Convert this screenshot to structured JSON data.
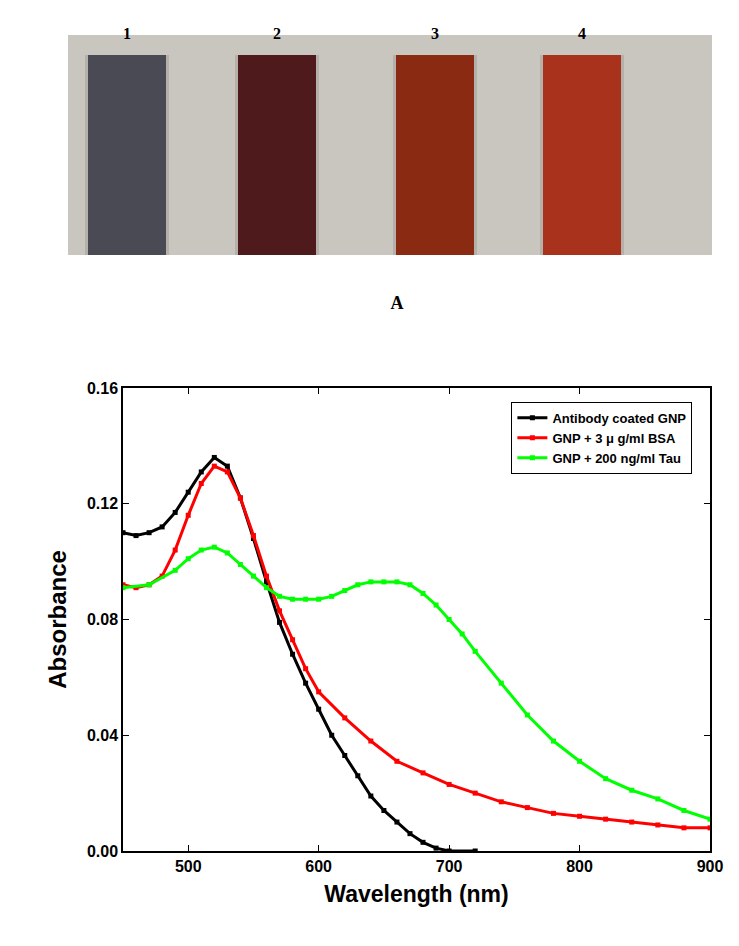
{
  "chart_data": {
    "type": "line",
    "x_label": "Wavelength (nm)",
    "y_label": "Absorbance",
    "xlim": [
      450,
      900
    ],
    "xticks": [
      500,
      600,
      700,
      800,
      900
    ],
    "ylim": [
      0,
      0.16
    ],
    "yticks": [
      {
        "value": 0,
        "label": "0.00"
      },
      {
        "value": 0.04,
        "label": "0.04"
      },
      {
        "value": 0.08,
        "label": "0.08"
      },
      {
        "value": 0.12,
        "label": "0.12"
      },
      {
        "value": 0.16,
        "label": "0.16"
      }
    ],
    "grid": false,
    "legend": "top right",
    "marker": "square",
    "series": [
      {
        "name": "Antibody coated GNP",
        "color": "#000000",
        "x": [
          450,
          460,
          470,
          480,
          490,
          500,
          510,
          520,
          530,
          540,
          550,
          560,
          570,
          580,
          590,
          600,
          610,
          620,
          630,
          640,
          650,
          660,
          670,
          680,
          690,
          700,
          720
        ],
        "values": [
          0.11,
          0.109,
          0.11,
          0.112,
          0.117,
          0.124,
          0.131,
          0.136,
          0.133,
          0.122,
          0.108,
          0.093,
          0.079,
          0.068,
          0.058,
          0.049,
          0.04,
          0.033,
          0.026,
          0.019,
          0.014,
          0.01,
          0.006,
          0.003,
          0.001,
          0.0,
          0.0
        ]
      },
      {
        "name": "GNP + 3 μ g/ml BSA",
        "color": "#ff0000",
        "x": [
          450,
          460,
          470,
          480,
          490,
          500,
          510,
          520,
          530,
          540,
          550,
          560,
          570,
          580,
          590,
          600,
          620,
          640,
          660,
          680,
          700,
          720,
          740,
          760,
          780,
          800,
          820,
          840,
          860,
          880,
          900
        ],
        "values": [
          0.092,
          0.091,
          0.092,
          0.095,
          0.104,
          0.116,
          0.127,
          0.133,
          0.131,
          0.122,
          0.109,
          0.095,
          0.083,
          0.073,
          0.063,
          0.055,
          0.046,
          0.038,
          0.031,
          0.027,
          0.023,
          0.02,
          0.017,
          0.015,
          0.013,
          0.012,
          0.011,
          0.01,
          0.009,
          0.008,
          0.008
        ]
      },
      {
        "name": "GNP + 200 ng/ml Tau",
        "color": "#00ff00",
        "x": [
          450,
          470,
          490,
          500,
          510,
          520,
          530,
          540,
          550,
          560,
          570,
          580,
          590,
          600,
          610,
          620,
          630,
          640,
          650,
          660,
          670,
          680,
          690,
          700,
          710,
          720,
          740,
          760,
          780,
          800,
          820,
          840,
          860,
          880,
          900
        ],
        "values": [
          0.091,
          0.092,
          0.097,
          0.101,
          0.104,
          0.105,
          0.103,
          0.099,
          0.095,
          0.091,
          0.088,
          0.087,
          0.087,
          0.087,
          0.088,
          0.09,
          0.092,
          0.093,
          0.093,
          0.093,
          0.092,
          0.089,
          0.085,
          0.08,
          0.075,
          0.069,
          0.058,
          0.047,
          0.038,
          0.031,
          0.025,
          0.021,
          0.018,
          0.014,
          0.011
        ]
      }
    ]
  },
  "photo": {
    "labels": [
      "1",
      "2",
      "3",
      "4"
    ],
    "colors": [
      "#4a4a55",
      "#4e1a1c",
      "#8a2a12",
      "#a8321c"
    ],
    "caption": "A"
  }
}
